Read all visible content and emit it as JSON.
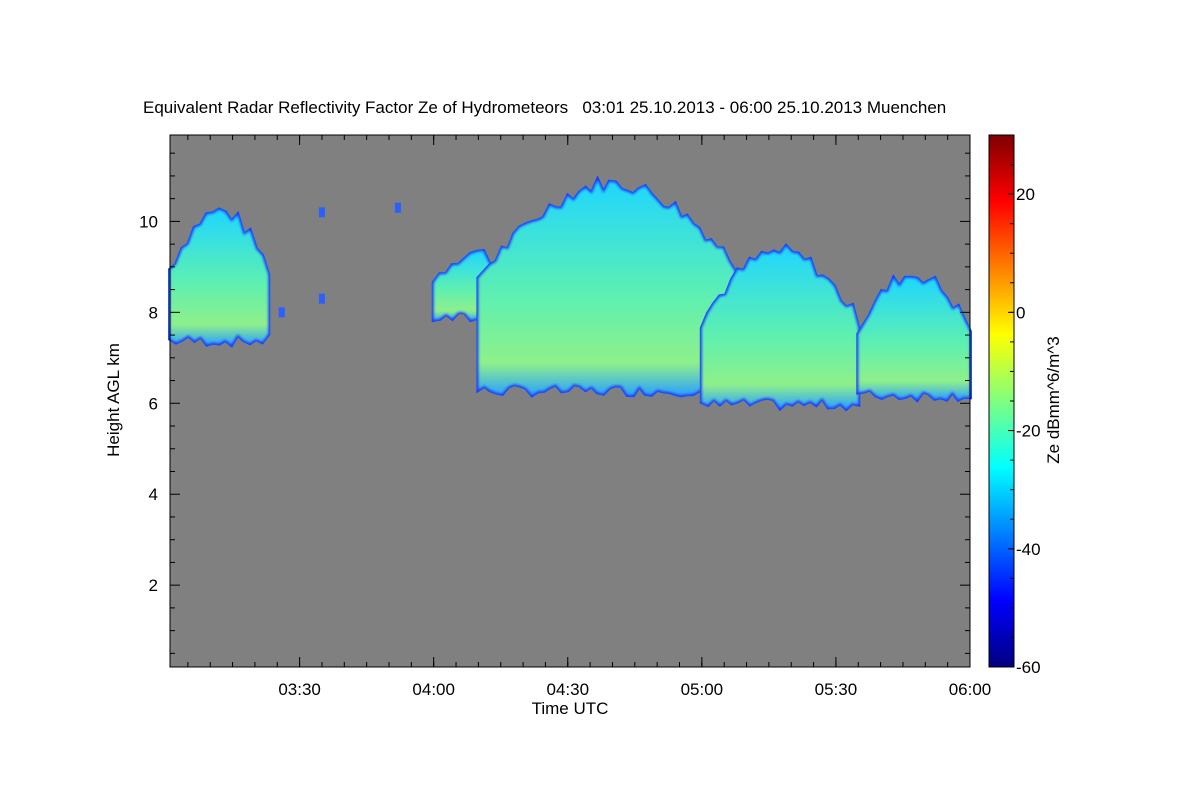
{
  "chart_data": {
    "type": "heatmap",
    "title": "Equivalent Radar Reflectivity Factor Ze of Hydrometeors   03:01 25.10.2013 - 06:00 25.10.2013 Muenchen",
    "xlabel": "Time UTC",
    "ylabel": "Height AGL km",
    "colorbar_label": "Ze dBmm^6/m^3",
    "x_range": [
      "03:01",
      "06:00"
    ],
    "x_ticks": [
      "03:30",
      "04:00",
      "04:30",
      "05:00",
      "05:30",
      "06:00"
    ],
    "y_range": [
      0.2,
      11.9
    ],
    "y_ticks": [
      "2",
      "4",
      "6",
      "8",
      "10"
    ],
    "colorbar_range": [
      -60,
      30
    ],
    "colorbar_ticks": [
      "20",
      "0",
      "-20",
      "-40",
      "-60"
    ],
    "colormap": "jet",
    "background_color": "#808080",
    "cloud_layers": [
      {
        "start": "03:01",
        "end": "03:23",
        "base_km": 7.4,
        "top_km": 10.2,
        "peak_dbz": -8
      },
      {
        "start": "04:00",
        "end": "04:18",
        "base_km": 7.9,
        "top_km": 9.3,
        "peak_dbz": -18
      },
      {
        "start": "04:10",
        "end": "05:10",
        "base_km": 6.3,
        "top_km": 10.8,
        "peak_dbz": -5
      },
      {
        "start": "05:00",
        "end": "05:35",
        "base_km": 6.0,
        "top_km": 9.3,
        "peak_dbz": -8
      },
      {
        "start": "05:35",
        "end": "06:00",
        "base_km": 6.2,
        "top_km": 8.8,
        "peak_dbz": -12
      }
    ]
  }
}
